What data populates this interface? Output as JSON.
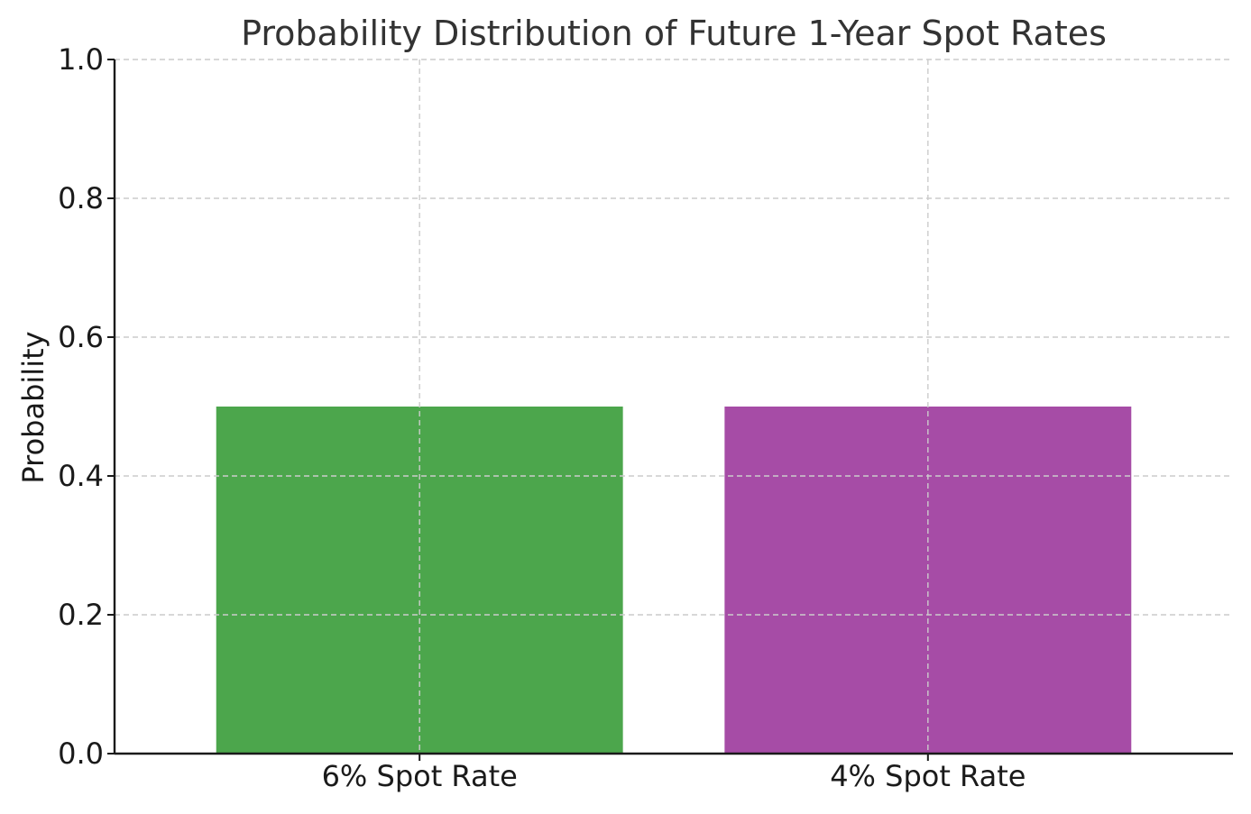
{
  "chart_data": {
    "type": "bar",
    "title": "Probability Distribution of Future 1-Year Spot Rates",
    "xlabel": "",
    "ylabel": "Probability",
    "categories": [
      "6% Spot Rate",
      "4% Spot Rate"
    ],
    "values": [
      0.5,
      0.5
    ],
    "colors": [
      "#4ca64c",
      "#a64ca6"
    ],
    "ylim": [
      0,
      1.0
    ],
    "yticks": [
      "0.0",
      "0.2",
      "0.4",
      "0.6",
      "0.8",
      "1.0"
    ],
    "grid": true,
    "legend": "none"
  }
}
